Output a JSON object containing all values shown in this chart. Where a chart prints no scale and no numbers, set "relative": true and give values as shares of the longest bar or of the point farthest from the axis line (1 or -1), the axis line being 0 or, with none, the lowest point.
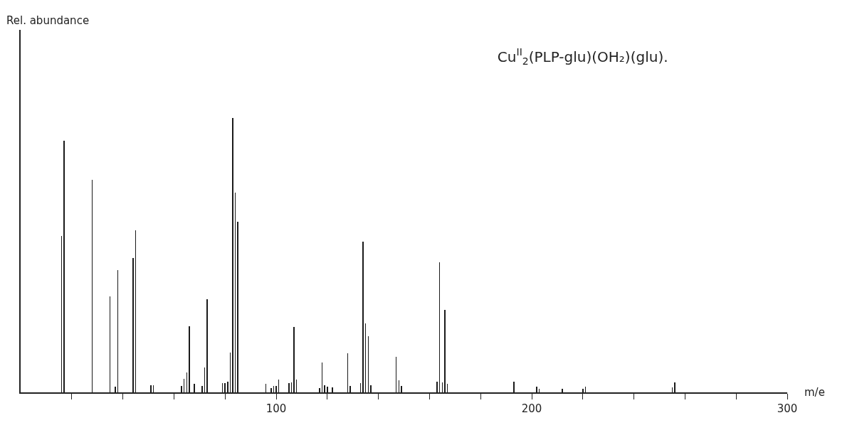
{
  "chart_data": {
    "type": "bar",
    "title": "Cu$^{II}$$_{2}$(PLP-glu)(OH₂)(glu).",
    "xlabel": "m/e",
    "annotations": [
      "Rel. abundance"
    ],
    "relative": true,
    "color": "#1a1a1a",
    "x": [
      16,
      17,
      28,
      35,
      37,
      38,
      44,
      45,
      51,
      52,
      63,
      64,
      65,
      66,
      68,
      71,
      72,
      73,
      79,
      80,
      81,
      82,
      83,
      84,
      85,
      96,
      98,
      99,
      100,
      101,
      105,
      106,
      107,
      108,
      117,
      118,
      119,
      120,
      122,
      128,
      129,
      133,
      134,
      135,
      136,
      137,
      147,
      148,
      149,
      163,
      164,
      165,
      166,
      167,
      193,
      202,
      203,
      212,
      220,
      221,
      255,
      256
    ],
    "values": [
      0.57,
      0.915,
      0.775,
      0.35,
      0.02,
      0.445,
      0.49,
      0.59,
      0.026,
      0.026,
      0.023,
      0.05,
      0.073,
      0.24,
      0.03,
      0.023,
      0.09,
      0.34,
      0.034,
      0.034,
      0.04,
      0.145,
      1,
      0.727,
      0.62,
      0.03,
      0.016,
      0.023,
      0.023,
      0.047,
      0.034,
      0.036,
      0.238,
      0.047,
      0.015,
      0.11,
      0.025,
      0.02,
      0.018,
      0.143,
      0.023,
      0.034,
      0.55,
      0.252,
      0.205,
      0.027,
      0.13,
      0.045,
      0.023,
      0.04,
      0.473,
      0.036,
      0.3,
      0.03,
      0.04,
      0.02,
      0.014,
      0.014,
      0.014,
      0.02,
      0.018,
      0.035
    ],
    "xlim": [
      0,
      300
    ],
    "xticks": [
      {
        "value": 20,
        "label": null
      },
      {
        "value": 40,
        "label": null
      },
      {
        "value": 60,
        "label": null
      },
      {
        "value": 80,
        "label": null
      },
      100,
      {
        "value": 120,
        "label": null
      },
      {
        "value": 140,
        "label": null
      },
      {
        "value": 160,
        "label": null
      },
      {
        "value": 180,
        "label": null
      },
      200,
      {
        "value": 220,
        "label": null
      },
      {
        "value": 240,
        "label": null
      },
      {
        "value": 260,
        "label": null
      },
      {
        "value": 280,
        "label": null
      },
      300
    ]
  }
}
